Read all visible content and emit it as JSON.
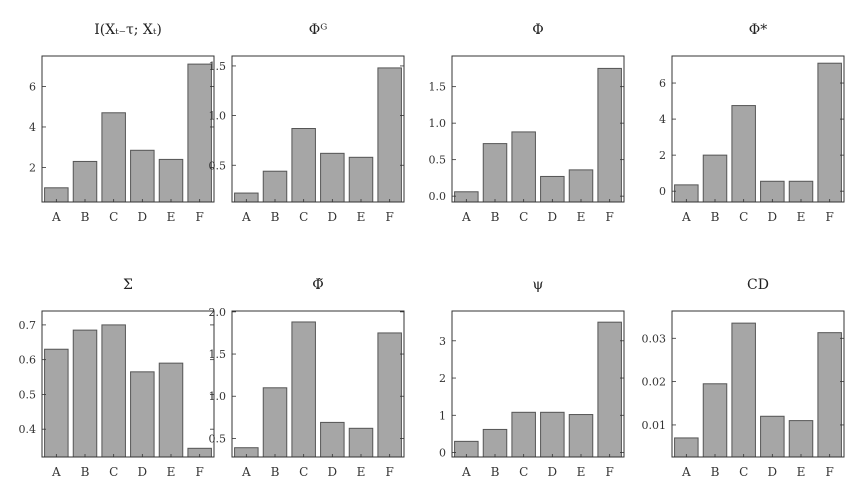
{
  "colors": {
    "bar_fill": "#a6a6a6",
    "bar_stroke": "#555555",
    "axis": "#333333"
  },
  "chart_data": [
    {
      "type": "bar",
      "title": "I(Xₜ₋τ; Xₜ)",
      "categories": [
        "A",
        "B",
        "C",
        "D",
        "E",
        "F"
      ],
      "values": [
        1.0,
        2.3,
        4.7,
        2.85,
        2.4,
        7.1
      ],
      "ylim": [
        0.3,
        7.5
      ],
      "yticks": [
        2,
        4,
        6
      ],
      "ytick_labels": [
        "2",
        "4",
        "6"
      ],
      "xlabel": "",
      "ylabel": ""
    },
    {
      "type": "bar",
      "title": "Φᴳ",
      "categories": [
        "A",
        "B",
        "C",
        "D",
        "E",
        "F"
      ],
      "values": [
        0.22,
        0.44,
        0.87,
        0.62,
        0.58,
        1.48
      ],
      "ylim": [
        0.13,
        1.6
      ],
      "yticks": [
        0.5,
        1.0,
        1.5
      ],
      "ytick_labels": [
        "0.5",
        "1.0",
        "1.5"
      ],
      "xlabel": "",
      "ylabel": ""
    },
    {
      "type": "bar",
      "title": "Φ",
      "categories": [
        "A",
        "B",
        "C",
        "D",
        "E",
        "F"
      ],
      "values": [
        0.06,
        0.72,
        0.88,
        0.27,
        0.36,
        1.75
      ],
      "ylim": [
        -0.08,
        1.92
      ],
      "yticks": [
        0.0,
        0.5,
        1.0,
        1.5
      ],
      "ytick_labels": [
        "0.0",
        "0.5",
        "1.0",
        "1.5"
      ],
      "xlabel": "",
      "ylabel": ""
    },
    {
      "type": "bar",
      "title": "Φ*",
      "categories": [
        "A",
        "B",
        "C",
        "D",
        "E",
        "F"
      ],
      "values": [
        0.35,
        2.0,
        4.75,
        0.55,
        0.55,
        7.1
      ],
      "ylim": [
        -0.6,
        7.5
      ],
      "yticks": [
        0,
        2,
        4,
        6
      ],
      "ytick_labels": [
        "0",
        "2",
        "4",
        "6"
      ],
      "xlabel": "",
      "ylabel": ""
    },
    {
      "type": "bar",
      "title": "Σ",
      "categories": [
        "A",
        "B",
        "C",
        "D",
        "E",
        "F"
      ],
      "values": [
        0.63,
        0.685,
        0.7,
        0.565,
        0.59,
        0.345
      ],
      "ylim": [
        0.32,
        0.74
      ],
      "yticks": [
        0.4,
        0.5,
        0.6,
        0.7
      ],
      "ytick_labels": [
        "0.4",
        "0.5",
        "0.6",
        "0.7"
      ],
      "xlabel": "",
      "ylabel": ""
    },
    {
      "type": "bar",
      "title": "Φ̃",
      "categories": [
        "A",
        "B",
        "C",
        "D",
        "E",
        "F"
      ],
      "values": [
        0.39,
        1.1,
        1.88,
        0.69,
        0.62,
        1.75
      ],
      "ylim": [
        0.28,
        2.01
      ],
      "yticks": [
        0.5,
        1.0,
        1.5,
        2.0
      ],
      "ytick_labels": [
        "0.5",
        "1.0",
        "1.5",
        "2.0"
      ],
      "xlabel": "",
      "ylabel": ""
    },
    {
      "type": "bar",
      "title": "ψ",
      "categories": [
        "A",
        "B",
        "C",
        "D",
        "E",
        "F"
      ],
      "values": [
        0.3,
        0.62,
        1.08,
        1.08,
        1.02,
        3.5
      ],
      "ylim": [
        -0.12,
        3.8
      ],
      "yticks": [
        0,
        1,
        2,
        3
      ],
      "ytick_labels": [
        "0",
        "1",
        "2",
        "3"
      ],
      "xlabel": "",
      "ylabel": ""
    },
    {
      "type": "bar",
      "title": "CD",
      "categories": [
        "A",
        "B",
        "C",
        "D",
        "E",
        "F"
      ],
      "values": [
        0.007,
        0.0195,
        0.0335,
        0.012,
        0.011,
        0.0313
      ],
      "ylim": [
        0.0026,
        0.0363
      ],
      "yticks": [
        0.01,
        0.02,
        0.03
      ],
      "ytick_labels": [
        "0.01",
        "0.02",
        "0.03"
      ],
      "xlabel": "",
      "ylabel": ""
    }
  ]
}
